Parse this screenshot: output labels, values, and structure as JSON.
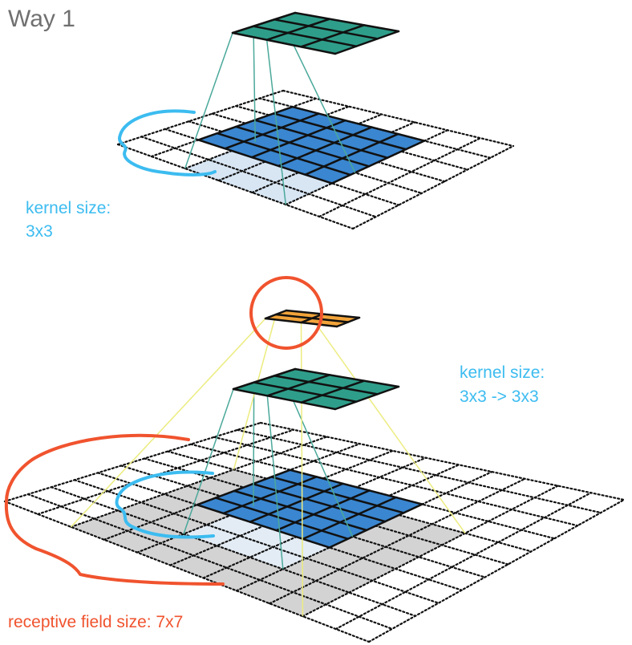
{
  "title": "Way 1",
  "top_diagram": {
    "kernel_label_line1": "kernel size:",
    "kernel_label_line2": "3x3"
  },
  "bottom_diagram": {
    "kernel_label_line1": "kernel size:",
    "kernel_label_line2": "3x3 -> 3x3",
    "receptive_field_label": "receptive field size: 7x7"
  },
  "colors": {
    "title": "#707070",
    "annotation_blue": "#3cbcf0",
    "annotation_red": "#f0532e",
    "output_teal": "#2e9e8a",
    "output_orange": "#f2a43a",
    "feature_blue": "#3a86d0",
    "kernel_light": "#d8e6f4",
    "receptive_gray": "#d3d3d3",
    "link_teal": "#4aa89a",
    "link_yellow": "#ecec80"
  }
}
